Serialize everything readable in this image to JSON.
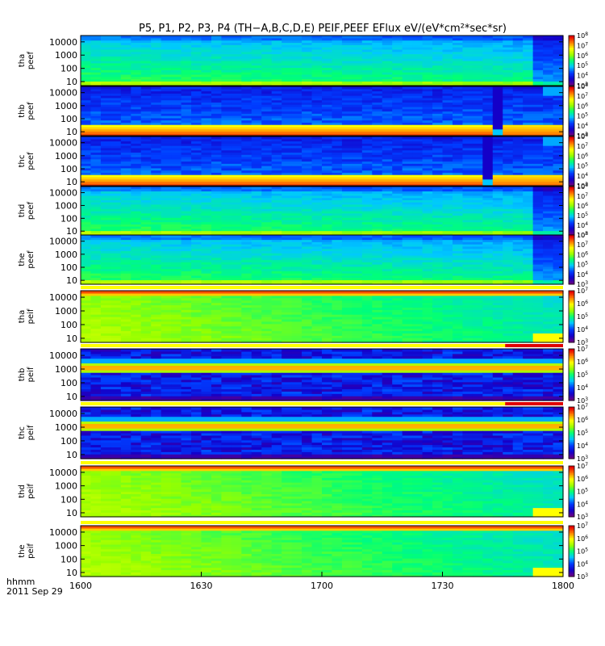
{
  "chart_data": {
    "type": "heatmap",
    "title": "P5, P1, P2, P3, P4 (TH−A,B,C,D,E) PEIF,PEEF EFlux eV/(eV*cm²*sec*sr)",
    "time_label": "hhmm",
    "date_label": "2011 Sep 29",
    "x_ticks": [
      "1600",
      "1630",
      "1700",
      "1730",
      "1800"
    ],
    "x_range": [
      1600,
      1800
    ],
    "y_ticks": [
      "10",
      "100",
      "1000",
      "10000"
    ],
    "y_scale": "log",
    "y_range_eV": [
      5,
      30000
    ],
    "panels": [
      {
        "probe": "tha",
        "instrument": "peef",
        "cbar_min_exp": 3,
        "cbar_max_exp": 8,
        "pattern": "electron_ramp"
      },
      {
        "probe": "thb",
        "instrument": "peef",
        "cbar_min_exp": 3,
        "cbar_max_exp": 8,
        "pattern": "electron_dense",
        "gap_at": 0.87
      },
      {
        "probe": "thc",
        "instrument": "peef",
        "cbar_min_exp": 3,
        "cbar_max_exp": 8,
        "pattern": "electron_dense",
        "gap_at": 0.84
      },
      {
        "probe": "thd",
        "instrument": "peef",
        "cbar_min_exp": 3,
        "cbar_max_exp": 8,
        "pattern": "electron_ramp"
      },
      {
        "probe": "the",
        "instrument": "peef",
        "cbar_min_exp": 3,
        "cbar_max_exp": 8,
        "pattern": "electron_ramp"
      },
      {
        "probe": "tha",
        "instrument": "peif",
        "cbar_min_exp": 3,
        "cbar_max_exp": 7,
        "pattern": "ion_smooth"
      },
      {
        "probe": "thb",
        "instrument": "peif",
        "cbar_min_exp": 3,
        "cbar_max_exp": 7,
        "pattern": "ion_band"
      },
      {
        "probe": "thc",
        "instrument": "peif",
        "cbar_min_exp": 3,
        "cbar_max_exp": 7,
        "pattern": "ion_band"
      },
      {
        "probe": "thd",
        "instrument": "peif",
        "cbar_min_exp": 3,
        "cbar_max_exp": 7,
        "pattern": "ion_smooth"
      },
      {
        "probe": "the",
        "instrument": "peif",
        "cbar_min_exp": 3,
        "cbar_max_exp": 7,
        "pattern": "ion_smooth"
      }
    ]
  }
}
